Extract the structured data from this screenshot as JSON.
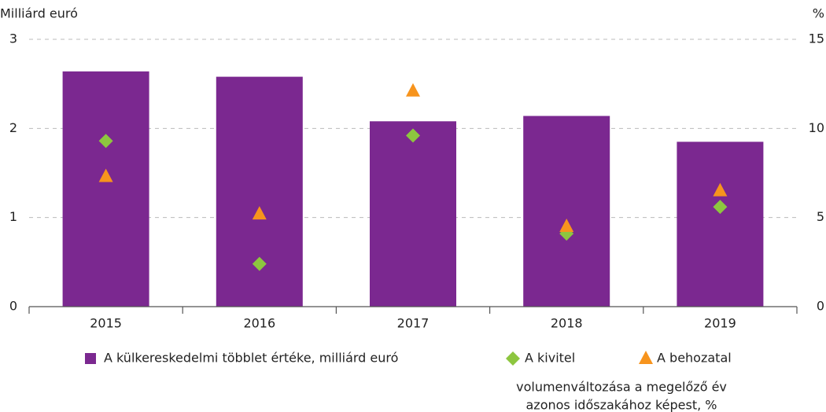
{
  "chart_data": {
    "type": "bar",
    "y_label": "Milliárd euró",
    "y2_label": "%",
    "categories": [
      "2015",
      "2016",
      "2017",
      "2018",
      "2019"
    ],
    "series": [
      {
        "name": "A külkereskedelmi többlet értéke, milliárd euró",
        "type": "bar",
        "color": "#7b2890",
        "values": [
          2.64,
          2.58,
          2.08,
          2.14,
          1.85
        ]
      },
      {
        "name": "A kivitel",
        "type": "scatter",
        "marker": "diamond",
        "axis": "y2",
        "color": "#8dc63f",
        "values": [
          9.3,
          2.4,
          9.6,
          4.1,
          5.6
        ]
      },
      {
        "name": "A behozatal",
        "type": "scatter",
        "marker": "triangle",
        "axis": "y2",
        "color": "#f7941d",
        "values": [
          7.3,
          5.2,
          12.1,
          4.5,
          6.5
        ]
      }
    ],
    "legend_note": [
      "volumenváltozása a megelőző év",
      "azonos időszakához képest, %"
    ],
    "ylim": [
      0,
      3
    ],
    "yticks": [
      0,
      1,
      2,
      3
    ],
    "y2lim": [
      0,
      15
    ],
    "y2ticks": [
      0,
      5,
      10,
      15
    ],
    "grid": true
  }
}
